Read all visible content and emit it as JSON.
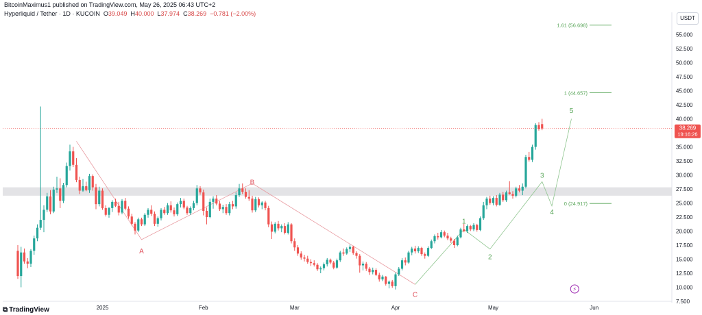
{
  "header": {
    "published": "BitcoinMaximus1 published on TradingView.com, May 26, 2025 06:43 UTC+2",
    "symbol": "Hyperliquid / Tether · 1D · KUCOIN",
    "o_label": "O",
    "o_value": "39.049",
    "h_label": "H",
    "h_value": "40.000",
    "l_label": "L",
    "l_value": "37.974",
    "c_label": "C",
    "c_value": "38.269",
    "change": "−0.781 (−2.00%)"
  },
  "currency": "USDT",
  "footer": {
    "brand": "TradingView",
    "brand_mark": "⧉"
  },
  "colors": {
    "up": "#26a69a",
    "down": "#ef5350",
    "up_dark": "#2e7d5b",
    "down_dark": "#d84a4a",
    "wave_red": "#e0525d",
    "wave_green": "#5aa65a",
    "fib": "#5aa65a"
  },
  "chart_data": {
    "type": "candlestick",
    "y_axis_ticks": [
      "55.000",
      "52.500",
      "50.000",
      "47.500",
      "45.000",
      "42.500",
      "40.000",
      "37.500",
      "35.000",
      "32.500",
      "30.000",
      "27.500",
      "25.000",
      "22.500",
      "20.000",
      "17.500",
      "15.000",
      "12.500",
      "10.000",
      "7.500"
    ],
    "ylim": [
      7.5,
      57.5
    ],
    "x_axis_ticks": [
      {
        "label": "2025",
        "day": 26
      },
      {
        "label": "Feb",
        "day": 57
      },
      {
        "label": "Mar",
        "day": 85
      },
      {
        "label": "Apr",
        "day": 116
      },
      {
        "label": "May",
        "day": 146
      },
      {
        "label": "Jun",
        "day": 177
      }
    ],
    "x_range_days": [
      0,
      185
    ],
    "last_price": {
      "value": 38.269,
      "label": "38.269",
      "countdown": "19:16:26"
    },
    "resistance_zone": [
      26.3,
      27.8
    ],
    "fib_levels": [
      {
        "label": "1.61 (56.698)",
        "value": 56.698
      },
      {
        "label": "1 (44.657)",
        "value": 44.657
      },
      {
        "label": "0 (24.917)",
        "value": 24.917
      }
    ],
    "wave_labels_abc": [
      {
        "label": "A",
        "day": 38,
        "value": 16.5
      },
      {
        "label": "B",
        "day": 72,
        "value": 28.8
      },
      {
        "label": "C",
        "day": 122,
        "value": 8.8
      }
    ],
    "wave_labels_impulse": [
      {
        "label": "1",
        "day": 137,
        "value": 21.8
      },
      {
        "label": "2",
        "day": 145,
        "value": 15.5
      },
      {
        "label": "3",
        "day": 161,
        "value": 30.0
      },
      {
        "label": "4",
        "day": 164,
        "value": 23.5
      },
      {
        "label": "5",
        "day": 170,
        "value": 41.5
      }
    ],
    "wave_path_abc": [
      [
        18,
        36
      ],
      [
        38,
        18.5
      ],
      [
        72,
        28.5
      ],
      [
        122,
        10.5
      ]
    ],
    "wave_path_impulse": [
      [
        122,
        10.5
      ],
      [
        137,
        20.3
      ],
      [
        145,
        16.8
      ],
      [
        161,
        28.8
      ],
      [
        164,
        24.5
      ],
      [
        170,
        40.0
      ]
    ],
    "candles": [
      [
        0,
        16.5,
        17.5,
        11.5,
        12.0
      ],
      [
        1,
        12.0,
        17.2,
        10.0,
        16.2
      ],
      [
        2,
        16.2,
        16.9,
        14.2,
        14.6
      ],
      [
        3,
        14.6,
        15.2,
        13.4,
        14.2
      ],
      [
        4,
        14.2,
        16.8,
        13.6,
        16.5
      ],
      [
        5,
        16.5,
        19.2,
        15.8,
        18.7
      ],
      [
        6,
        18.7,
        21.2,
        18.2,
        20.6
      ],
      [
        7,
        20.6,
        42.2,
        20.2,
        22.0
      ],
      [
        8,
        22.0,
        24.6,
        19.8,
        23.8
      ],
      [
        9,
        23.8,
        26.8,
        23.4,
        26.2
      ],
      [
        10,
        26.2,
        27.3,
        23.0,
        23.5
      ],
      [
        11,
        23.5,
        27.9,
        23.2,
        27.4
      ],
      [
        12,
        27.4,
        29.7,
        26.8,
        27.6
      ],
      [
        13,
        27.6,
        29.4,
        24.1,
        25.4
      ],
      [
        14,
        25.4,
        28.6,
        25.0,
        28.2
      ],
      [
        15,
        28.2,
        32.2,
        27.8,
        31.6
      ],
      [
        16,
        31.6,
        35.4,
        30.8,
        34.2
      ],
      [
        17,
        34.2,
        35.0,
        31.4,
        31.8
      ],
      [
        18,
        31.8,
        33.0,
        28.7,
        29.1
      ],
      [
        19,
        29.1,
        29.7,
        26.6,
        27.2
      ],
      [
        20,
        27.2,
        29.3,
        27.0,
        28.0
      ],
      [
        21,
        28.0,
        28.8,
        27.1,
        27.3
      ],
      [
        22,
        27.3,
        30.2,
        26.8,
        29.8
      ],
      [
        23,
        29.8,
        30.1,
        27.2,
        27.8
      ],
      [
        24,
        27.8,
        28.4,
        23.9,
        24.8
      ],
      [
        25,
        24.8,
        27.9,
        24.4,
        27.2
      ],
      [
        26,
        27.2,
        27.6,
        23.8,
        24.1
      ],
      [
        27,
        24.1,
        24.6,
        22.6,
        22.9
      ],
      [
        28,
        22.9,
        24.3,
        22.4,
        24.1
      ],
      [
        29,
        24.1,
        25.5,
        23.4,
        25.2
      ],
      [
        30,
        25.2,
        25.8,
        24.3,
        24.5
      ],
      [
        31,
        24.5,
        25.2,
        22.8,
        23.3
      ],
      [
        32,
        23.3,
        25.7,
        23.0,
        25.4
      ],
      [
        33,
        25.4,
        25.9,
        23.7,
        24.0
      ],
      [
        34,
        24.0,
        24.4,
        22.2,
        22.6
      ],
      [
        35,
        22.6,
        23.1,
        21.0,
        21.3
      ],
      [
        36,
        21.3,
        21.6,
        19.4,
        20.1
      ],
      [
        37,
        20.1,
        22.4,
        19.8,
        22.1
      ],
      [
        38,
        22.1,
        22.4,
        20.9,
        21.2
      ],
      [
        39,
        21.2,
        23.2,
        20.9,
        22.9
      ],
      [
        40,
        22.9,
        24.1,
        22.4,
        23.8
      ],
      [
        41,
        23.8,
        24.6,
        22.7,
        23.1
      ],
      [
        42,
        23.1,
        23.5,
        20.9,
        21.3
      ],
      [
        43,
        21.3,
        22.6,
        20.8,
        22.3
      ],
      [
        44,
        22.3,
        24.1,
        21.9,
        23.8
      ],
      [
        45,
        23.8,
        24.3,
        22.9,
        23.2
      ],
      [
        46,
        23.2,
        25.0,
        22.9,
        24.6
      ],
      [
        47,
        24.6,
        25.3,
        23.3,
        23.7
      ],
      [
        48,
        23.7,
        24.2,
        22.6,
        23.0
      ],
      [
        49,
        23.0,
        25.1,
        22.7,
        24.8
      ],
      [
        50,
        24.8,
        25.9,
        24.2,
        25.4
      ],
      [
        51,
        25.4,
        25.8,
        23.9,
        24.2
      ],
      [
        52,
        24.2,
        24.5,
        22.9,
        23.2
      ],
      [
        53,
        23.2,
        24.4,
        22.9,
        24.1
      ],
      [
        54,
        24.1,
        25.4,
        23.7,
        25.0
      ],
      [
        55,
        25.0,
        28.2,
        24.6,
        27.6
      ],
      [
        56,
        27.6,
        28.0,
        26.5,
        26.9
      ],
      [
        57,
        26.9,
        27.4,
        22.8,
        23.6
      ],
      [
        58,
        23.6,
        24.2,
        21.2,
        22.5
      ],
      [
        59,
        22.5,
        25.8,
        22.3,
        25.2
      ],
      [
        60,
        25.2,
        26.2,
        24.0,
        25.8
      ],
      [
        61,
        25.8,
        26.4,
        24.6,
        24.9
      ],
      [
        62,
        24.9,
        25.4,
        23.6,
        23.9
      ],
      [
        63,
        23.9,
        24.7,
        23.2,
        24.3
      ],
      [
        64,
        24.3,
        24.8,
        22.9,
        23.2
      ],
      [
        65,
        23.2,
        25.2,
        22.8,
        24.8
      ],
      [
        66,
        24.8,
        25.4,
        23.9,
        24.4
      ],
      [
        67,
        24.4,
        26.9,
        24.0,
        26.4
      ],
      [
        68,
        26.4,
        28.4,
        26.1,
        27.6
      ],
      [
        69,
        27.6,
        28.5,
        26.6,
        27.0
      ],
      [
        70,
        27.0,
        27.6,
        25.8,
        26.1
      ],
      [
        71,
        26.1,
        27.3,
        25.4,
        25.8
      ],
      [
        72,
        25.8,
        26.3,
        23.3,
        23.7
      ],
      [
        73,
        23.7,
        26.1,
        23.4,
        25.7
      ],
      [
        74,
        25.7,
        26.0,
        24.2,
        24.6
      ],
      [
        75,
        24.6,
        25.3,
        23.9,
        25.1
      ],
      [
        76,
        25.1,
        25.4,
        23.7,
        24.1
      ],
      [
        77,
        24.1,
        24.5,
        20.7,
        21.2
      ],
      [
        78,
        21.2,
        21.7,
        18.6,
        19.9
      ],
      [
        79,
        19.9,
        21.6,
        19.6,
        21.3
      ],
      [
        80,
        21.3,
        21.8,
        20.1,
        20.5
      ],
      [
        81,
        20.5,
        21.2,
        19.8,
        20.9
      ],
      [
        82,
        20.9,
        21.4,
        19.4,
        19.7
      ],
      [
        83,
        19.7,
        21.6,
        19.4,
        21.2
      ],
      [
        84,
        21.2,
        21.4,
        17.8,
        18.2
      ],
      [
        85,
        18.2,
        18.7,
        16.5,
        17.1
      ],
      [
        86,
        17.1,
        17.5,
        15.6,
        16.0
      ],
      [
        87,
        16.0,
        16.4,
        14.9,
        15.3
      ],
      [
        88,
        15.3,
        15.8,
        14.6,
        15.1
      ],
      [
        89,
        15.1,
        15.6,
        14.2,
        14.5
      ],
      [
        90,
        14.5,
        15.0,
        13.8,
        14.3
      ],
      [
        91,
        14.3,
        14.8,
        13.7,
        14.0
      ],
      [
        92,
        14.0,
        14.3,
        12.9,
        13.2
      ],
      [
        93,
        13.2,
        13.7,
        12.5,
        13.4
      ],
      [
        94,
        13.4,
        14.4,
        13.0,
        14.1
      ],
      [
        95,
        14.1,
        15.2,
        13.7,
        14.9
      ],
      [
        96,
        14.9,
        15.1,
        14.1,
        14.4
      ],
      [
        97,
        14.4,
        14.7,
        13.2,
        13.5
      ],
      [
        98,
        13.5,
        15.1,
        13.3,
        14.8
      ],
      [
        99,
        14.8,
        16.5,
        14.5,
        16.2
      ],
      [
        100,
        16.2,
        16.9,
        15.6,
        16.0
      ],
      [
        101,
        16.0,
        17.1,
        15.8,
        16.8
      ],
      [
        102,
        16.8,
        17.6,
        16.3,
        17.2
      ],
      [
        103,
        17.2,
        17.4,
        15.8,
        16.1
      ],
      [
        104,
        16.1,
        16.4,
        15.1,
        15.6
      ],
      [
        105,
        15.6,
        15.9,
        12.6,
        13.9
      ],
      [
        106,
        13.9,
        14.6,
        13.0,
        14.2
      ],
      [
        107,
        14.2,
        14.5,
        12.9,
        13.3
      ],
      [
        108,
        13.3,
        13.6,
        12.2,
        12.7
      ],
      [
        109,
        12.7,
        13.5,
        12.3,
        13.1
      ],
      [
        110,
        13.1,
        13.4,
        12.0,
        12.2
      ],
      [
        111,
        12.2,
        12.6,
        11.0,
        11.4
      ],
      [
        112,
        11.4,
        12.2,
        11.1,
        11.9
      ],
      [
        113,
        11.9,
        12.0,
        10.3,
        10.6
      ],
      [
        114,
        10.6,
        11.2,
        9.8,
        11.0
      ],
      [
        115,
        11.0,
        11.3,
        9.9,
        10.2
      ],
      [
        116,
        10.2,
        12.6,
        9.6,
        12.3
      ],
      [
        117,
        12.3,
        13.6,
        12.0,
        13.3
      ],
      [
        118,
        13.3,
        15.2,
        13.0,
        14.8
      ],
      [
        119,
        14.8,
        15.3,
        13.9,
        14.4
      ],
      [
        120,
        14.4,
        16.5,
        14.2,
        16.2
      ],
      [
        121,
        16.2,
        17.2,
        15.7,
        16.9
      ],
      [
        122,
        16.9,
        17.4,
        16.0,
        16.4
      ],
      [
        123,
        16.4,
        17.3,
        16.1,
        17.0
      ],
      [
        124,
        17.0,
        17.2,
        15.6,
        15.9
      ],
      [
        125,
        15.9,
        16.2,
        15.1,
        15.6
      ],
      [
        126,
        15.6,
        17.3,
        15.4,
        17.0
      ],
      [
        127,
        17.0,
        18.5,
        16.8,
        18.2
      ],
      [
        128,
        18.2,
        19.4,
        17.8,
        19.1
      ],
      [
        129,
        19.1,
        19.7,
        18.5,
        18.9
      ],
      [
        130,
        18.9,
        20.2,
        18.7,
        19.8
      ],
      [
        131,
        19.8,
        20.1,
        18.9,
        19.2
      ],
      [
        132,
        19.2,
        19.7,
        18.4,
        18.7
      ],
      [
        133,
        18.7,
        19.0,
        17.9,
        18.3
      ],
      [
        134,
        18.3,
        18.6,
        17.0,
        17.5
      ],
      [
        135,
        17.5,
        19.2,
        17.3,
        18.9
      ],
      [
        136,
        18.9,
        20.6,
        18.7,
        20.3
      ],
      [
        137,
        20.3,
        21.3,
        19.8,
        20.0
      ],
      [
        138,
        20.0,
        21.2,
        19.7,
        20.9
      ],
      [
        139,
        20.9,
        21.1,
        20.0,
        20.3
      ],
      [
        140,
        20.3,
        21.4,
        20.0,
        21.1
      ],
      [
        141,
        21.1,
        21.3,
        19.9,
        20.2
      ],
      [
        142,
        20.2,
        22.6,
        20.0,
        22.3
      ],
      [
        143,
        22.3,
        25.2,
        22.0,
        24.6
      ],
      [
        144,
        24.6,
        26.1,
        23.9,
        25.8
      ],
      [
        145,
        25.8,
        26.3,
        24.7,
        25.0
      ],
      [
        146,
        25.0,
        26.2,
        24.6,
        25.9
      ],
      [
        147,
        25.9,
        26.4,
        24.4,
        24.7
      ],
      [
        148,
        24.7,
        26.8,
        24.5,
        26.5
      ],
      [
        149,
        26.5,
        27.0,
        25.2,
        25.5
      ],
      [
        150,
        25.5,
        27.2,
        25.2,
        26.9
      ],
      [
        151,
        26.9,
        28.9,
        26.5,
        26.6
      ],
      [
        152,
        26.6,
        27.1,
        25.8,
        26.3
      ],
      [
        153,
        26.3,
        27.9,
        26.0,
        27.6
      ],
      [
        154,
        27.6,
        28.2,
        26.9,
        27.2
      ],
      [
        155,
        27.2,
        28.5,
        26.4,
        27.9
      ],
      [
        156,
        27.9,
        33.6,
        27.6,
        33.2
      ],
      [
        157,
        33.2,
        34.1,
        32.4,
        32.7
      ],
      [
        158,
        32.7,
        35.4,
        32.3,
        35.0
      ],
      [
        159,
        35.0,
        39.2,
        34.5,
        38.9
      ],
      [
        160,
        38.9,
        39.4,
        37.9,
        38.2
      ],
      [
        161,
        39.05,
        40.0,
        37.97,
        38.27
      ]
    ]
  }
}
